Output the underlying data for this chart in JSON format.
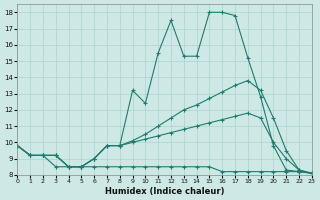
{
  "xlabel": "Humidex (Indice chaleur)",
  "bg_color": "#cee9e5",
  "grid_color": "#aad4cf",
  "line_color": "#1e7b6e",
  "xlim": [
    0,
    23
  ],
  "ylim": [
    8,
    18.5
  ],
  "xticks": [
    0,
    1,
    2,
    3,
    4,
    5,
    6,
    7,
    8,
    9,
    10,
    11,
    12,
    13,
    14,
    15,
    16,
    17,
    18,
    19,
    20,
    21,
    22,
    23
  ],
  "yticks": [
    8,
    9,
    10,
    11,
    12,
    13,
    14,
    15,
    16,
    17,
    18
  ],
  "series": [
    {
      "x": [
        0,
        1,
        2,
        3,
        4,
        5,
        6,
        7,
        8,
        9,
        10,
        11,
        12,
        13,
        14,
        15,
        16,
        17,
        18,
        19,
        20,
        21,
        22,
        23
      ],
      "y": [
        9.8,
        9.2,
        9.2,
        9.2,
        8.5,
        8.5,
        9.0,
        9.8,
        9.8,
        13.2,
        12.4,
        15.5,
        17.5,
        15.3,
        15.3,
        18.0,
        18.0,
        17.8,
        15.2,
        12.8,
        9.8,
        8.3,
        8.2,
        8.1
      ]
    },
    {
      "x": [
        0,
        1,
        2,
        3,
        4,
        5,
        6,
        7,
        8,
        9,
        10,
        11,
        12,
        13,
        14,
        15,
        16,
        17,
        18,
        19,
        20,
        21,
        22,
        23
      ],
      "y": [
        9.8,
        9.2,
        9.2,
        9.2,
        8.5,
        8.5,
        9.0,
        9.8,
        9.8,
        10.1,
        10.5,
        11.0,
        11.5,
        12.0,
        12.3,
        12.7,
        13.1,
        13.5,
        13.8,
        13.2,
        11.5,
        9.5,
        8.3,
        8.1
      ]
    },
    {
      "x": [
        0,
        1,
        2,
        3,
        4,
        5,
        6,
        7,
        8,
        9,
        10,
        11,
        12,
        13,
        14,
        15,
        16,
        17,
        18,
        19,
        20,
        21,
        22,
        23
      ],
      "y": [
        9.8,
        9.2,
        9.2,
        9.2,
        8.5,
        8.5,
        9.0,
        9.8,
        9.8,
        10.0,
        10.2,
        10.4,
        10.6,
        10.8,
        11.0,
        11.2,
        11.4,
        11.6,
        11.8,
        11.5,
        10.0,
        9.0,
        8.3,
        8.1
      ]
    },
    {
      "x": [
        0,
        1,
        2,
        3,
        4,
        5,
        6,
        7,
        8,
        9,
        10,
        11,
        12,
        13,
        14,
        15,
        16,
        17,
        18,
        19,
        20,
        21,
        22,
        23
      ],
      "y": [
        9.8,
        9.2,
        9.2,
        8.5,
        8.5,
        8.5,
        8.5,
        8.5,
        8.5,
        8.5,
        8.5,
        8.5,
        8.5,
        8.5,
        8.5,
        8.5,
        8.2,
        8.2,
        8.2,
        8.2,
        8.2,
        8.2,
        8.2,
        8.1
      ]
    }
  ]
}
